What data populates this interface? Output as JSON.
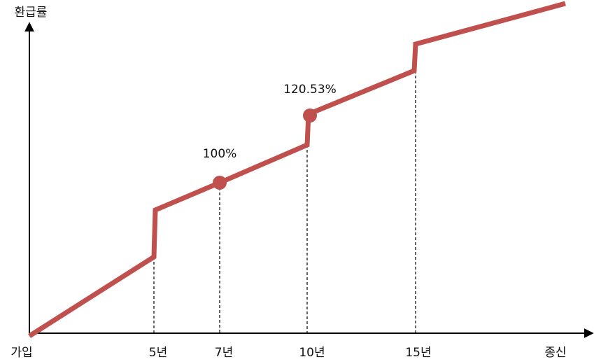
{
  "y_axis_label": "환급률",
  "x_labels": [
    "가입",
    "5년",
    "7년",
    "10년",
    "15년",
    "종신"
  ],
  "annotations": [
    "100%",
    "120.53%"
  ]
}
